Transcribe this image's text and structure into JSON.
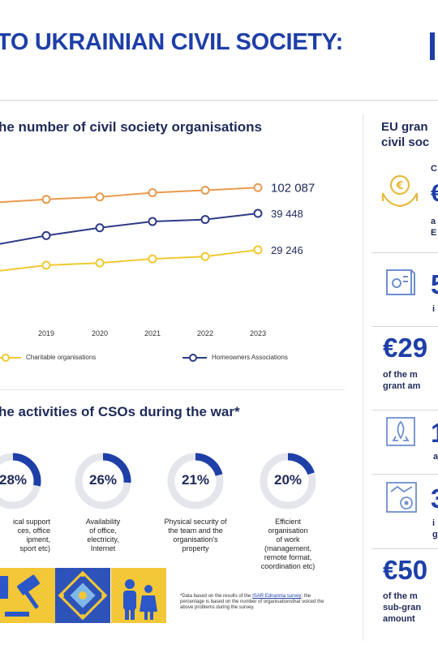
{
  "header": {
    "title": "TO UKRAINIAN CIVIL SOCIETY:"
  },
  "section_counts": {
    "heading": "he number of civil society organisations"
  },
  "chart_data": {
    "type": "line",
    "categories": [
      "8",
      "2019",
      "2020",
      "2021",
      "2022",
      "2023"
    ],
    "series": [
      {
        "name": "",
        "color": "#e89a4e",
        "values": [
          null,
          96800,
          97900,
          99800,
          100900,
          102087
        ],
        "end_label": "102 087"
      },
      {
        "name": "Homeowners Associations",
        "color": "#2e3a86",
        "values": [
          null,
          29500,
          33000,
          35800,
          36700,
          39448
        ],
        "end_label": "39 448"
      },
      {
        "name": "Charitable organisations",
        "color": "#f0c830",
        "values": [
          null,
          22500,
          23500,
          25300,
          26300,
          29246
        ],
        "end_label": "29 246"
      }
    ],
    "legend": {
      "charitable": "Charitable organisations",
      "homeowners": "Homeowners Associations"
    }
  },
  "section_war": {
    "heading": "he activities of CSOs during the war*",
    "items": [
      {
        "value": "28%",
        "pct": 28,
        "caption": [
          "ical support",
          "ces, office",
          "ipment,",
          "sport etc)"
        ]
      },
      {
        "value": "26%",
        "pct": 26,
        "caption": [
          "Availability",
          "of office,",
          "electricity,",
          "Internet"
        ]
      },
      {
        "value": "21%",
        "pct": 21,
        "caption": [
          "Physical security of",
          "the team and the",
          "organisation's",
          "property"
        ]
      },
      {
        "value": "20%",
        "pct": 20,
        "caption": [
          "Efficient",
          "organisation",
          "of work",
          "(management,",
          "remote format,",
          "coordination etc)"
        ]
      }
    ],
    "footnote_pre": "*Data based on the results of the ",
    "footnote_link": "ISAR Ednannia survey",
    "footnote_post": "; the percentage is based on the number of organisationsthat voiced the above problems during the survey."
  },
  "right_panel": {
    "heading_line1": "EU gran",
    "heading_line2": "civil soc",
    "card1": {
      "letter": "C",
      "big": "€",
      "line1": "a",
      "line2": "E"
    },
    "card2": {
      "big": "5",
      "line1": "i"
    },
    "card3": {
      "big": "€29",
      "line1": "of the m",
      "line2": "grant am"
    },
    "card4": {
      "big": "1",
      "line1": "a"
    },
    "card5": {
      "big": "3",
      "line1": "i",
      "line2": "g"
    },
    "card6": {
      "big": "€50",
      "line1": "of the m",
      "line2": "sub-gran",
      "line3": "amount"
    }
  },
  "colors": {
    "primary_blue": "#1e3fa8",
    "navy": "#1f2a5a",
    "orange": "#e89a4e",
    "yellow": "#f0c830",
    "icon_gold": "#e7b93a",
    "icon_blue": "#6e8fd0"
  }
}
